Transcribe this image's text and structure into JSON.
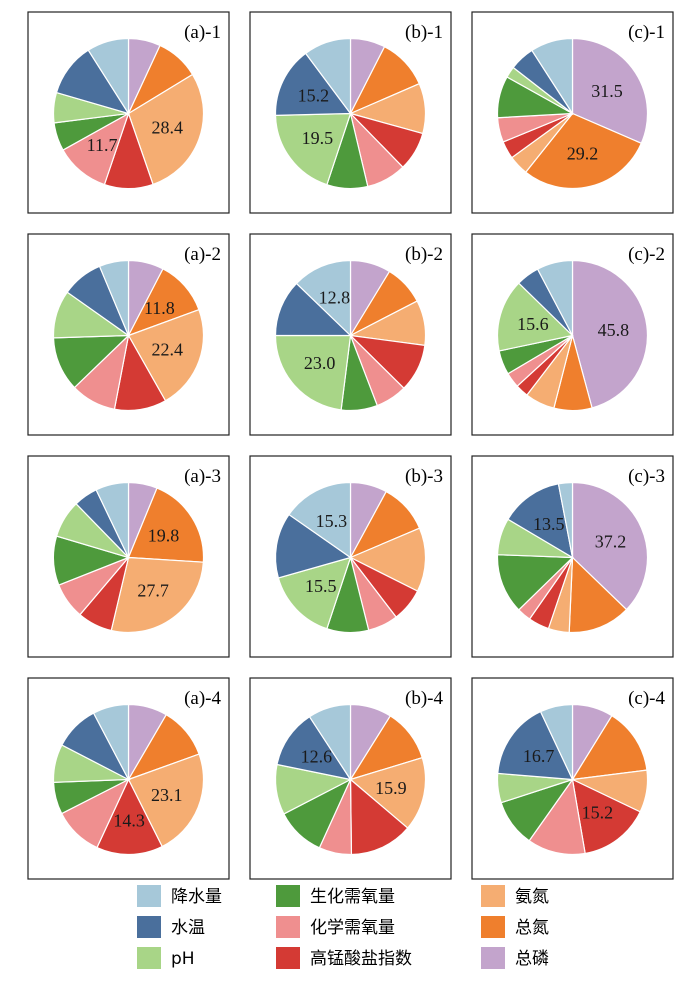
{
  "colors": {
    "降水量": "#a6c8d9",
    "水温": "#4a6f9c",
    "pH": "#a8d587",
    "生化需氧量": "#4e9a3c",
    "化学需氧量": "#ef8f8f",
    "高锰酸盐指数": "#d43a34",
    "氨氮": "#f5ad72",
    "总氮": "#ef7f2d",
    "总磷": "#c3a4cc"
  },
  "legend": [
    "降水量",
    "水温",
    "pH",
    "生化需氧量",
    "化学需氧量",
    "高锰酸盐指数",
    "氨氮",
    "总氮",
    "总磷"
  ],
  "chart_data": [
    {
      "type": "pie",
      "title": "(a)-1",
      "categories": [
        "总磷",
        "总氮",
        "氨氮",
        "高锰酸盐指数",
        "化学需氧量",
        "生化需氧量",
        "pH",
        "水温",
        "降水量"
      ],
      "values": [
        6.9,
        9.4,
        28.4,
        10.5,
        11.7,
        6.1,
        6.5,
        11.5,
        9.0
      ],
      "labels": [
        {
          "category": "氨氮",
          "text": "28.4"
        },
        {
          "category": "化学需氧量",
          "text": "11.7"
        }
      ]
    },
    {
      "type": "pie",
      "title": "(b)-1",
      "categories": [
        "总磷",
        "总氮",
        "氨氮",
        "高锰酸盐指数",
        "化学需氧量",
        "生化需氧量",
        "pH",
        "水温",
        "降水量"
      ],
      "values": [
        7.5,
        11.0,
        10.8,
        8.4,
        8.6,
        8.8,
        19.5,
        15.2,
        10.2
      ],
      "labels": [
        {
          "category": "水温",
          "text": "15.2"
        },
        {
          "category": "pH",
          "text": "19.5"
        }
      ]
    },
    {
      "type": "pie",
      "title": "(c)-1",
      "categories": [
        "总磷",
        "总氮",
        "氨氮",
        "高锰酸盐指数",
        "化学需氧量",
        "生化需氧量",
        "pH",
        "水温",
        "降水量"
      ],
      "values": [
        31.5,
        29.2,
        4.3,
        3.8,
        5.3,
        9.0,
        2.4,
        5.4,
        9.1
      ],
      "labels": [
        {
          "category": "总磷",
          "text": "31.5"
        },
        {
          "category": "总氮",
          "text": "29.2"
        }
      ]
    },
    {
      "type": "pie",
      "title": "(a)-2",
      "categories": [
        "总磷",
        "总氮",
        "氨氮",
        "高锰酸盐指数",
        "化学需氧量",
        "生化需氧量",
        "pH",
        "水温",
        "降水量"
      ],
      "values": [
        7.6,
        11.8,
        22.4,
        11.2,
        9.8,
        11.7,
        10.3,
        8.9,
        6.3
      ],
      "labels": [
        {
          "category": "总氮",
          "text": "11.8"
        },
        {
          "category": "氨氮",
          "text": "22.4"
        }
      ]
    },
    {
      "type": "pie",
      "title": "(b)-2",
      "categories": [
        "总磷",
        "总氮",
        "氨氮",
        "高锰酸盐指数",
        "化学需氧量",
        "生化需氧量",
        "pH",
        "水温",
        "降水量"
      ],
      "values": [
        8.7,
        8.7,
        9.7,
        10.3,
        6.8,
        7.8,
        23.0,
        12.2,
        12.8
      ],
      "labels": [
        {
          "category": "降水量",
          "text": "12.8"
        },
        {
          "category": "pH",
          "text": "23.0"
        }
      ]
    },
    {
      "type": "pie",
      "title": "(c)-2",
      "categories": [
        "总磷",
        "总氮",
        "氨氮",
        "高锰酸盐指数",
        "化学需氧量",
        "生化需氧量",
        "pH",
        "水温",
        "降水量"
      ],
      "values": [
        45.8,
        8.2,
        6.4,
        2.8,
        3.3,
        5.2,
        15.6,
        5.0,
        7.7
      ],
      "labels": [
        {
          "category": "pH",
          "text": "15.6"
        },
        {
          "category": "总磷",
          "text": "45.8"
        }
      ]
    },
    {
      "type": "pie",
      "title": "(a)-3",
      "categories": [
        "总磷",
        "总氮",
        "氨氮",
        "高锰酸盐指数",
        "化学需氧量",
        "生化需氧量",
        "pH",
        "水温",
        "降水量"
      ],
      "values": [
        6.2,
        19.8,
        27.7,
        7.5,
        7.8,
        10.6,
        8.1,
        5.2,
        7.1
      ],
      "labels": [
        {
          "category": "总氮",
          "text": "19.8"
        },
        {
          "category": "氨氮",
          "text": "27.7"
        }
      ]
    },
    {
      "type": "pie",
      "title": "(b)-3",
      "categories": [
        "总磷",
        "总氮",
        "氨氮",
        "高锰酸盐指数",
        "化学需氧量",
        "生化需氧量",
        "pH",
        "水温",
        "降水量"
      ],
      "values": [
        7.9,
        10.7,
        13.8,
        7.2,
        6.5,
        9.0,
        15.5,
        14.1,
        15.3
      ],
      "labels": [
        {
          "category": "降水量",
          "text": "15.3"
        },
        {
          "category": "pH",
          "text": "15.5"
        }
      ]
    },
    {
      "type": "pie",
      "title": "(c)-3",
      "categories": [
        "总磷",
        "总氮",
        "氨氮",
        "高锰酸盐指数",
        "化学需氧量",
        "生化需氧量",
        "pH",
        "水温",
        "降水量"
      ],
      "values": [
        37.2,
        13.5,
        4.5,
        4.5,
        3.0,
        12.9,
        7.9,
        13.5,
        3.0
      ],
      "labels": [
        {
          "category": "水温",
          "text": "13.5"
        },
        {
          "category": "总磷",
          "text": "37.2"
        }
      ]
    },
    {
      "type": "pie",
      "title": "(a)-4",
      "categories": [
        "总磷",
        "总氮",
        "氨氮",
        "高锰酸盐指数",
        "化学需氧量",
        "生化需氧量",
        "pH",
        "水温",
        "降水量"
      ],
      "values": [
        8.4,
        11.1,
        23.1,
        14.3,
        10.6,
        6.9,
        8.2,
        9.7,
        7.7
      ],
      "labels": [
        {
          "category": "氨氮",
          "text": "23.1"
        },
        {
          "category": "高锰酸盐指数",
          "text": "14.3"
        }
      ]
    },
    {
      "type": "pie",
      "title": "(b)-4",
      "categories": [
        "总磷",
        "总氮",
        "氨氮",
        "高锰酸盐指数",
        "化学需氧量",
        "生化需氧量",
        "pH",
        "水温",
        "降水量"
      ],
      "values": [
        8.9,
        11.4,
        15.9,
        13.6,
        7.0,
        10.6,
        10.8,
        12.6,
        9.2
      ],
      "labels": [
        {
          "category": "水温",
          "text": "12.6"
        },
        {
          "category": "氨氮",
          "text": "15.9"
        }
      ]
    },
    {
      "type": "pie",
      "title": "(c)-4",
      "categories": [
        "总磷",
        "总氮",
        "氨氮",
        "高锰酸盐指数",
        "化学需氧量",
        "生化需氧量",
        "pH",
        "水温",
        "降水量"
      ],
      "values": [
        8.8,
        14.2,
        9.1,
        15.2,
        12.5,
        10.2,
        6.3,
        16.7,
        7.0
      ],
      "labels": [
        {
          "category": "水温",
          "text": "16.7"
        },
        {
          "category": "高锰酸盐指数",
          "text": "15.2"
        }
      ]
    }
  ]
}
